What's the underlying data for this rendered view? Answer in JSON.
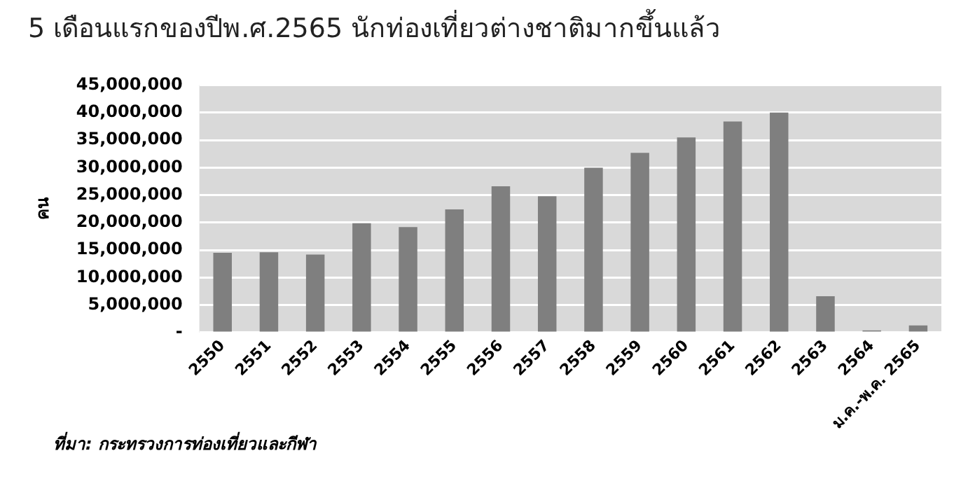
{
  "chart_data": {
    "type": "bar",
    "title": "5 เดือนแรกของปีพ.ศ.2565 นักท่องเที่ยวต่างชาติมากขึ้นแล้ว",
    "ylabel": "คน",
    "categories": [
      "2550",
      "2551",
      "2552",
      "2553",
      "2554",
      "2555",
      "2556",
      "2557",
      "2558",
      "2559",
      "2560",
      "2561",
      "2562",
      "2563",
      "2564",
      "ม.ค.-พ.ค. 2565"
    ],
    "values": [
      14500000,
      14600000,
      14200000,
      19900000,
      19200000,
      22400000,
      26600000,
      24800000,
      30000000,
      32700000,
      35500000,
      38400000,
      40000000,
      6600000,
      400000,
      1300000
    ],
    "color": "#7f7f7f",
    "ylim": [
      0,
      45000000
    ],
    "yticks": [
      {
        "value": 0,
        "label": "-"
      },
      {
        "value": 5000000,
        "label": "5,000,000"
      },
      {
        "value": 10000000,
        "label": "10,000,000"
      },
      {
        "value": 15000000,
        "label": "15,000,000"
      },
      {
        "value": 20000000,
        "label": "20,000,000"
      },
      {
        "value": 25000000,
        "label": "25,000,000"
      },
      {
        "value": 30000000,
        "label": "30,000,000"
      },
      {
        "value": 35000000,
        "label": "35,000,000"
      },
      {
        "value": 40000000,
        "label": "40,000,000"
      },
      {
        "value": 45000000,
        "label": "45,000,000"
      }
    ],
    "grid": "y",
    "annotations": [
      "ที่มา: กระทรวงการท่องเที่ยวและกีฬา"
    ]
  }
}
